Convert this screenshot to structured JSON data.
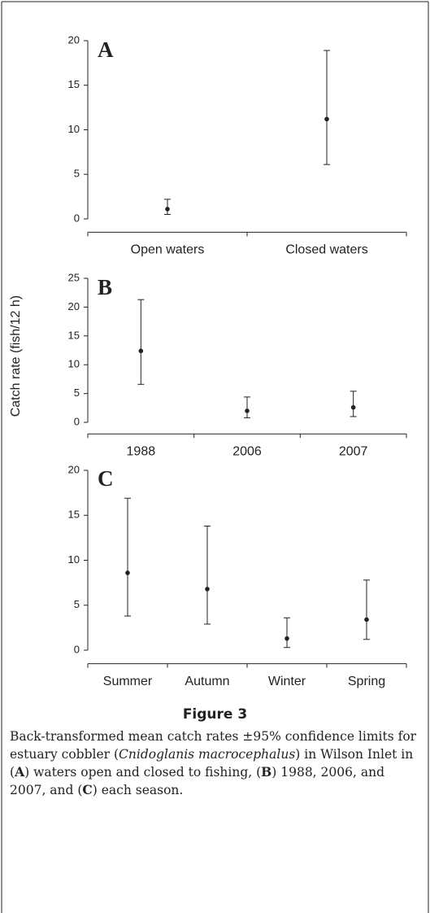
{
  "chart_data": [
    {
      "type": "errorbar",
      "label": "A",
      "categories": [
        "Open waters",
        "Closed waters"
      ],
      "values": [
        1.1,
        11.2
      ],
      "lower": [
        0.5,
        6.1
      ],
      "upper": [
        2.2,
        18.9
      ],
      "ylim": [
        -1.5,
        20
      ],
      "yticks": [
        0,
        5,
        10,
        15,
        20
      ],
      "color": "#222222"
    },
    {
      "type": "errorbar",
      "label": "B",
      "ylabel": "Catch rate (fish/12 h)",
      "categories": [
        "1988",
        "2006",
        "2007"
      ],
      "values": [
        12.4,
        2.0,
        2.6
      ],
      "lower": [
        6.6,
        0.8,
        1.0
      ],
      "upper": [
        21.3,
        4.4,
        5.4
      ],
      "ylim": [
        -2,
        25
      ],
      "yticks": [
        0,
        5,
        10,
        15,
        20,
        25
      ],
      "color": "#222222"
    },
    {
      "type": "errorbar",
      "label": "C",
      "categories": [
        "Summer",
        "Autumn",
        "Winter",
        "Spring"
      ],
      "values": [
        8.6,
        6.8,
        1.3,
        3.4
      ],
      "lower": [
        3.8,
        2.9,
        0.3,
        1.2
      ],
      "upper": [
        16.9,
        13.8,
        3.6,
        7.8
      ],
      "ylim": [
        -1.5,
        20
      ],
      "yticks": [
        0,
        5,
        10,
        15,
        20
      ],
      "color": "#222222"
    }
  ],
  "caption": {
    "title": "Figure 3",
    "parts": [
      "Back-transformed mean catch rates ±95% confidence limits for estuary cobbler (",
      "Cnidoglanis macrocephalus",
      ") in Wilson Inlet in (",
      "A",
      ") waters open and closed to fishing, (",
      "B",
      ") 1988, 2006, and 2007, and (",
      "C",
      ") each season."
    ]
  }
}
